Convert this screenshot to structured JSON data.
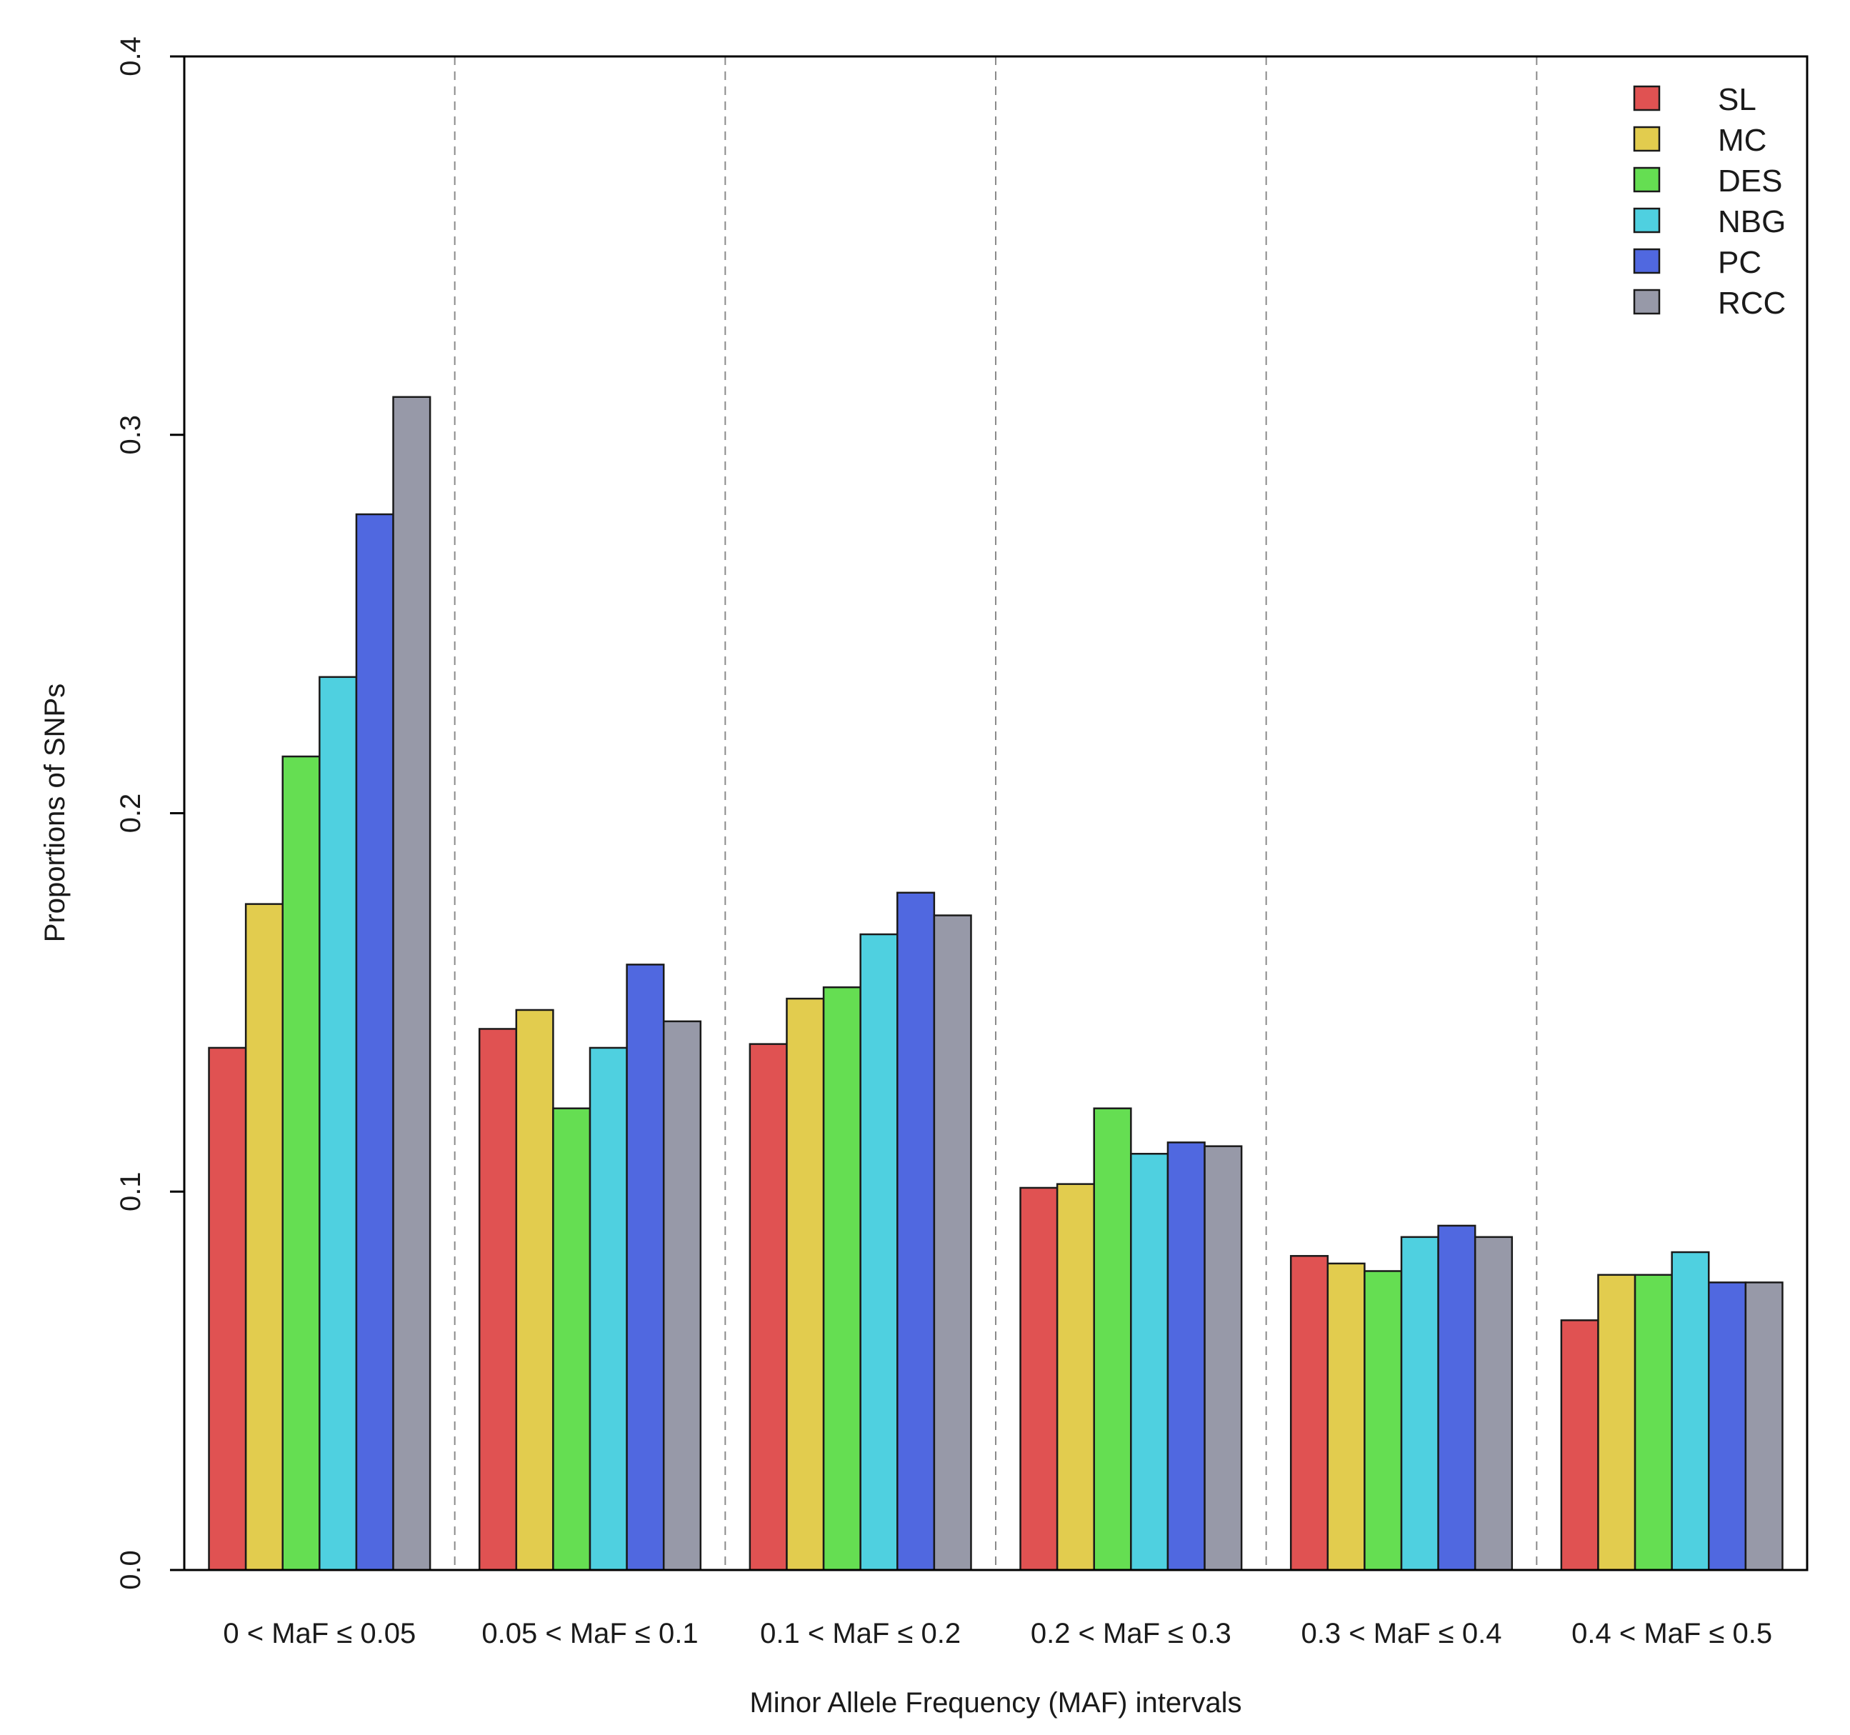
{
  "chart_data": {
    "type": "bar",
    "title": "",
    "xlabel": "Minor Allele Frequency (MAF) intervals",
    "ylabel": "Proportions of SNPs",
    "ylim": [
      0,
      0.4
    ],
    "yticks": [
      "0.0",
      "0.1",
      "0.2",
      "0.3",
      "0.4"
    ],
    "categories": [
      "0 < MaF ≤ 0.05",
      "0.05 < MaF ≤ 0.1",
      "0.1 < MaF ≤ 0.2",
      "0.2 < MaF ≤ 0.3",
      "0.3 < MaF ≤ 0.4",
      "0.4 < MaF ≤ 0.5"
    ],
    "legend_position": "top-right",
    "series": [
      {
        "name": "SL",
        "color": "#e05252",
        "values": [
          0.138,
          0.143,
          0.139,
          0.101,
          0.083,
          0.066
        ]
      },
      {
        "name": "MC",
        "color": "#e2cc4e",
        "values": [
          0.176,
          0.148,
          0.151,
          0.102,
          0.081,
          0.078
        ]
      },
      {
        "name": "DES",
        "color": "#65de52",
        "values": [
          0.215,
          0.122,
          0.154,
          0.122,
          0.079,
          0.078
        ]
      },
      {
        "name": "NBG",
        "color": "#4fd0e0",
        "values": [
          0.236,
          0.138,
          0.168,
          0.11,
          0.088,
          0.084
        ]
      },
      {
        "name": "PC",
        "color": "#5068e0",
        "values": [
          0.279,
          0.16,
          0.179,
          0.113,
          0.091,
          0.076
        ]
      },
      {
        "name": "RCC",
        "color": "#9799a8",
        "values": [
          0.31,
          0.145,
          0.173,
          0.112,
          0.088,
          0.076
        ]
      }
    ]
  }
}
